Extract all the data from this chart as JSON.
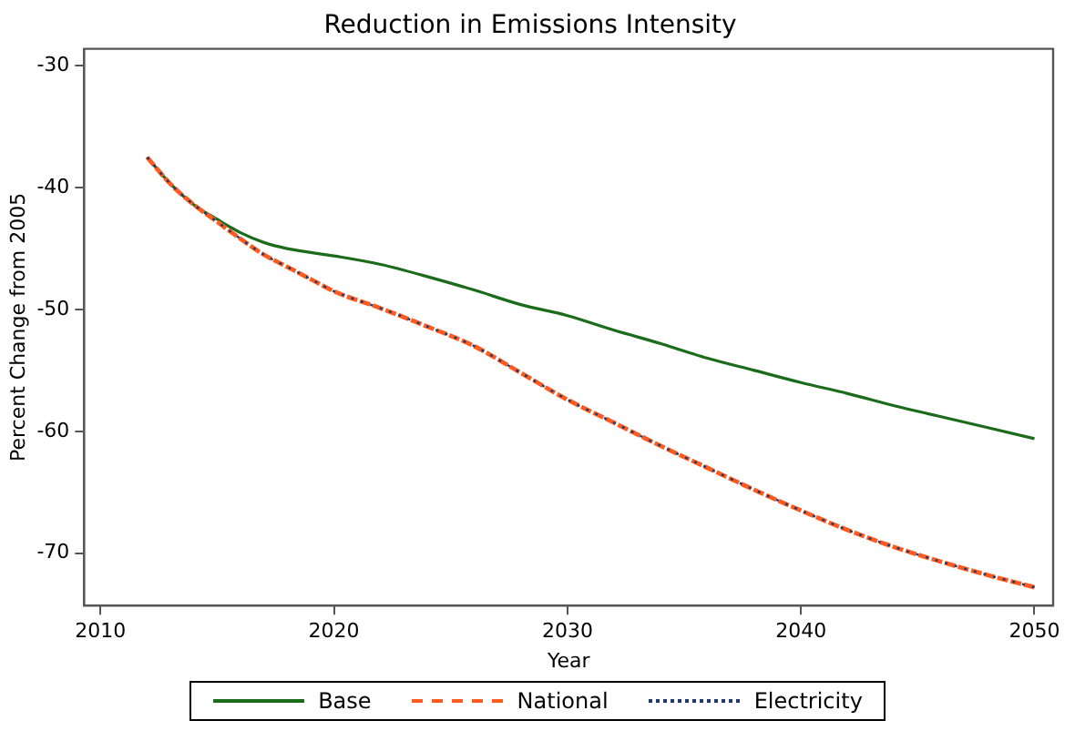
{
  "chart_data": {
    "type": "line",
    "title": "Reduction in Emissions Intensity",
    "xlabel": "Year",
    "ylabel": "Percent Change from 2005",
    "xlim": [
      2009.3,
      2050.8
    ],
    "xticks": [
      2010,
      2020,
      2030,
      2040,
      2050
    ],
    "ylim": [
      -74.3,
      -28.6
    ],
    "yticks": [
      -70,
      -60,
      -50,
      -40,
      -30
    ],
    "grid": false,
    "legend": "bottom",
    "marker": "none",
    "series": [
      {
        "name": "Base",
        "color": "#1a6b1a",
        "line_style": "solid",
        "x": [
          2012,
          2013,
          2014,
          2015,
          2016,
          2017,
          2018,
          2020,
          2022,
          2024,
          2026,
          2028,
          2030,
          2032,
          2034,
          2036,
          2038,
          2040,
          2042,
          2044,
          2046,
          2048,
          2050
        ],
        "values": [
          -37.5,
          -39.7,
          -41.4,
          -42.6,
          -43.7,
          -44.5,
          -45.0,
          -45.6,
          -46.3,
          -47.3,
          -48.4,
          -49.6,
          -50.5,
          -51.7,
          -52.8,
          -54.0,
          -55.0,
          -56.0,
          -56.9,
          -57.9,
          -58.8,
          -59.7,
          -60.6
        ]
      },
      {
        "name": "National",
        "color": "#ff5a1f",
        "line_style": "dashed",
        "x": [
          2012,
          2013,
          2014,
          2015,
          2016,
          2017,
          2018,
          2019,
          2020,
          2022,
          2024,
          2026,
          2028,
          2030,
          2032,
          2034,
          2036,
          2038,
          2040,
          2042,
          2044,
          2046,
          2048,
          2050
        ],
        "values": [
          -37.5,
          -39.7,
          -41.4,
          -42.8,
          -44.2,
          -45.5,
          -46.5,
          -47.5,
          -48.5,
          -49.9,
          -51.4,
          -53.0,
          -55.2,
          -57.4,
          -59.3,
          -61.2,
          -63.0,
          -64.8,
          -66.5,
          -68.1,
          -69.5,
          -70.7,
          -71.8,
          -72.8
        ]
      },
      {
        "name": "Electricity",
        "color": "#1f3a6b",
        "line_style": "dotted",
        "x": [
          2012,
          2013,
          2014,
          2015,
          2016,
          2017,
          2018,
          2019,
          2020,
          2022,
          2024,
          2026,
          2028,
          2030,
          2032,
          2034,
          2036,
          2038,
          2040,
          2042,
          2044,
          2046,
          2048,
          2050
        ],
        "values": [
          -37.5,
          -39.7,
          -41.4,
          -42.8,
          -44.2,
          -45.5,
          -46.5,
          -47.5,
          -48.5,
          -49.9,
          -51.4,
          -53.0,
          -55.2,
          -57.4,
          -59.3,
          -61.2,
          -63.0,
          -64.8,
          -66.5,
          -68.1,
          -69.5,
          -70.7,
          -71.8,
          -72.8
        ]
      }
    ]
  }
}
